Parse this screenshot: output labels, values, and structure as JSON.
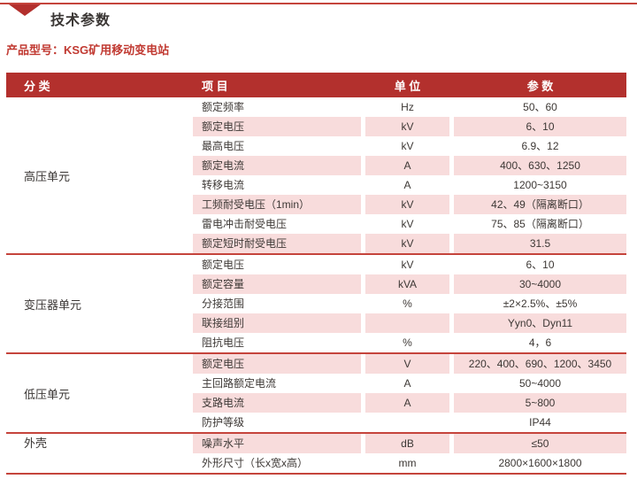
{
  "page": {
    "title": "技术参数",
    "product_label": "产品型号：KSG矿用移动变电站"
  },
  "colors": {
    "header_bg": "#b3302d",
    "row_pink": "#f8dcdc",
    "accent_line": "#c5443c",
    "title_red": "#c13a32"
  },
  "table": {
    "headers": {
      "category": "分 类",
      "item": "项 目",
      "unit": "单 位",
      "param": "参 数"
    },
    "sections": [
      {
        "category": "高压单元",
        "rows": [
          {
            "item": "额定频率",
            "unit": "Hz",
            "value": "50、60"
          },
          {
            "item": "额定电压",
            "unit": "kV",
            "value": "6、10"
          },
          {
            "item": "最高电压",
            "unit": "kV",
            "value": "6.9、12"
          },
          {
            "item": "额定电流",
            "unit": "A",
            "value": "400、630、1250"
          },
          {
            "item": "转移电流",
            "unit": "A",
            "value": "1200~3150"
          },
          {
            "item": "工频耐受电压（1min）",
            "unit": "kV",
            "value": "42、49（隔离断口）"
          },
          {
            "item": "雷电冲击耐受电压",
            "unit": "kV",
            "value": "75、85（隔离断口）"
          },
          {
            "item": "额定短时耐受电压",
            "unit": "kV",
            "value": "31.5"
          }
        ]
      },
      {
        "category": "变压器单元",
        "rows": [
          {
            "item": "额定电压",
            "unit": "kV",
            "value": "6、10"
          },
          {
            "item": "额定容量",
            "unit": "kVA",
            "value": "30~4000"
          },
          {
            "item": "分接范围",
            "unit": "%",
            "value": "±2×2.5%、±5%"
          },
          {
            "item": "联接组别",
            "unit": "",
            "value": "Yyn0、Dyn11"
          },
          {
            "item": "阻抗电压",
            "unit": "%",
            "value": "4，6"
          }
        ]
      },
      {
        "category": "低压单元",
        "rows": [
          {
            "item": "额定电压",
            "unit": "V",
            "value": "220、400、690、1200、3450"
          },
          {
            "item": "主回路额定电流",
            "unit": "A",
            "value": "50~4000"
          },
          {
            "item": "支路电流",
            "unit": "A",
            "value": "5~800"
          },
          {
            "item": "防护等级",
            "unit": "",
            "value": "IP44"
          }
        ]
      },
      {
        "category": "外壳",
        "rows": [
          {
            "item": "噪声水平",
            "unit": "dB",
            "value": "≤50"
          },
          {
            "item": "外形尺寸（长x宽x高）",
            "unit": "mm",
            "value": "2800×1600×1800"
          }
        ]
      }
    ]
  }
}
